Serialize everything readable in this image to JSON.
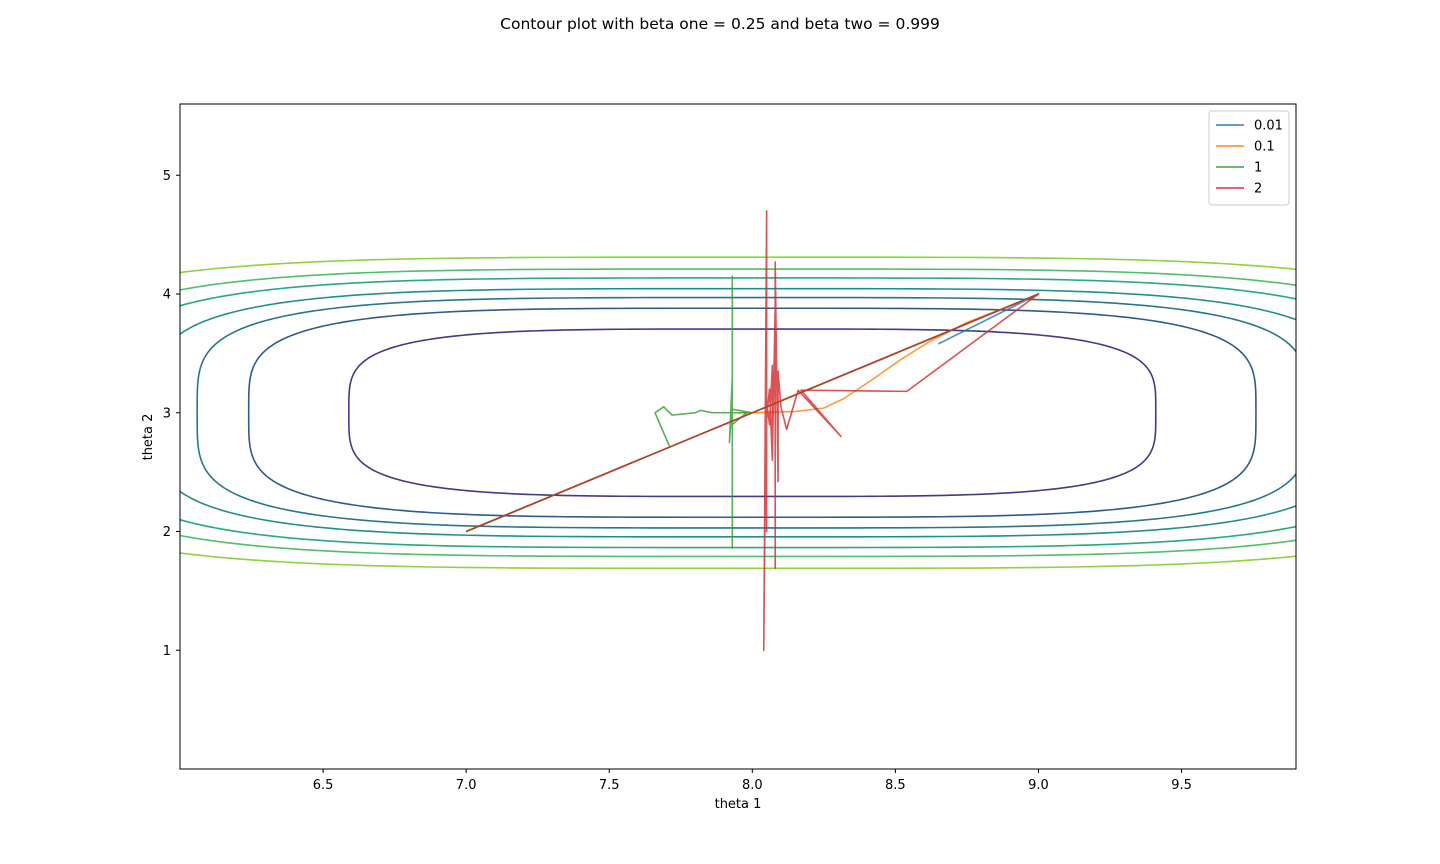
{
  "chart_data": {
    "type": "line",
    "title": "Contour plot with beta one = 0.25 and beta two = 0.999",
    "xlabel": "theta 1",
    "ylabel": "theta 2",
    "xlim": [
      6.0,
      9.9
    ],
    "ylim": [
      0.0,
      5.6
    ],
    "xticks": [
      "6.5",
      "7.0",
      "7.5",
      "8.0",
      "8.5",
      "9.0",
      "9.5"
    ],
    "xtick_values": [
      6.5,
      7.0,
      7.5,
      8.0,
      8.5,
      9.0,
      9.5
    ],
    "yticks": [
      "1",
      "2",
      "3",
      "4",
      "5"
    ],
    "ytick_values": [
      1,
      2,
      3,
      4,
      5
    ],
    "grid": false,
    "legend_position": "top-right",
    "contours": {
      "center": [
        8.0,
        3.0
      ],
      "shape_exponent": 4,
      "radius_ratio": 0.5,
      "levels": [
        {
          "a": 1.41,
          "color": "#3e3d8a"
        },
        {
          "a": 1.76,
          "color": "#2f5b8c"
        },
        {
          "a": 1.94,
          "color": "#26778e"
        },
        {
          "a": 2.09,
          "color": "#21908d"
        },
        {
          "a": 2.27,
          "color": "#2aa87f"
        },
        {
          "a": 2.42,
          "color": "#4fbf68"
        },
        {
          "a": 2.62,
          "color": "#8dd43f"
        }
      ]
    },
    "series": [
      {
        "name": "0.01",
        "color": "#1f77b4",
        "points": [
          [
            7.0,
            2.0
          ],
          [
            9.0,
            4.0
          ],
          [
            8.85,
            3.82
          ],
          [
            8.75,
            3.7
          ],
          [
            8.65,
            3.58
          ]
        ]
      },
      {
        "name": "0.1",
        "color": "#ff7f0e",
        "points": [
          [
            7.0,
            2.0
          ],
          [
            9.0,
            4.0
          ],
          [
            8.9,
            3.9
          ],
          [
            8.75,
            3.76
          ],
          [
            8.62,
            3.6
          ],
          [
            8.52,
            3.45
          ],
          [
            8.42,
            3.28
          ],
          [
            8.32,
            3.12
          ],
          [
            8.25,
            3.04
          ],
          [
            8.15,
            3.01
          ],
          [
            8.0,
            3.0
          ],
          [
            7.95,
            3.0
          ]
        ]
      },
      {
        "name": "1",
        "color": "#2ca02c",
        "points": [
          [
            7.0,
            2.0
          ],
          [
            9.0,
            4.0
          ],
          [
            8.0,
            3.0
          ],
          [
            7.93,
            3.03
          ],
          [
            7.93,
            4.15
          ],
          [
            7.93,
            1.86
          ],
          [
            7.93,
            3.6
          ],
          [
            7.93,
            2.3
          ],
          [
            7.93,
            3.3
          ],
          [
            7.92,
            2.75
          ],
          [
            7.93,
            3.1
          ],
          [
            7.93,
            2.9
          ],
          [
            7.98,
            3.0
          ],
          [
            7.86,
            3.0
          ],
          [
            7.84,
            3.01
          ],
          [
            7.82,
            3.02
          ],
          [
            7.8,
            3.0
          ],
          [
            7.76,
            2.99
          ],
          [
            7.72,
            2.98
          ],
          [
            7.69,
            3.05
          ],
          [
            7.66,
            3.0
          ],
          [
            7.71,
            2.72
          ]
        ]
      },
      {
        "name": "2",
        "color": "#d62728",
        "points": [
          [
            7.0,
            2.0
          ],
          [
            9.0,
            4.0
          ],
          [
            8.54,
            3.18
          ],
          [
            8.17,
            3.19
          ],
          [
            8.31,
            2.8
          ],
          [
            8.16,
            3.19
          ],
          [
            8.12,
            2.86
          ],
          [
            8.1,
            3.05
          ],
          [
            8.09,
            3.35
          ],
          [
            8.09,
            2.42
          ],
          [
            8.08,
            4.27
          ],
          [
            8.08,
            1.69
          ],
          [
            8.08,
            3.9
          ],
          [
            8.07,
            2.6
          ],
          [
            8.06,
            3.2
          ],
          [
            8.05,
            2.95
          ],
          [
            8.05,
            4.7
          ],
          [
            8.04,
            1.0
          ],
          [
            8.05,
            3.7
          ],
          [
            8.05,
            2.0
          ],
          [
            8.05,
            3.1
          ],
          [
            8.06,
            2.9
          ],
          [
            8.07,
            3.4
          ],
          [
            8.07,
            2.8
          ],
          [
            8.06,
            3.0
          ]
        ]
      }
    ]
  }
}
